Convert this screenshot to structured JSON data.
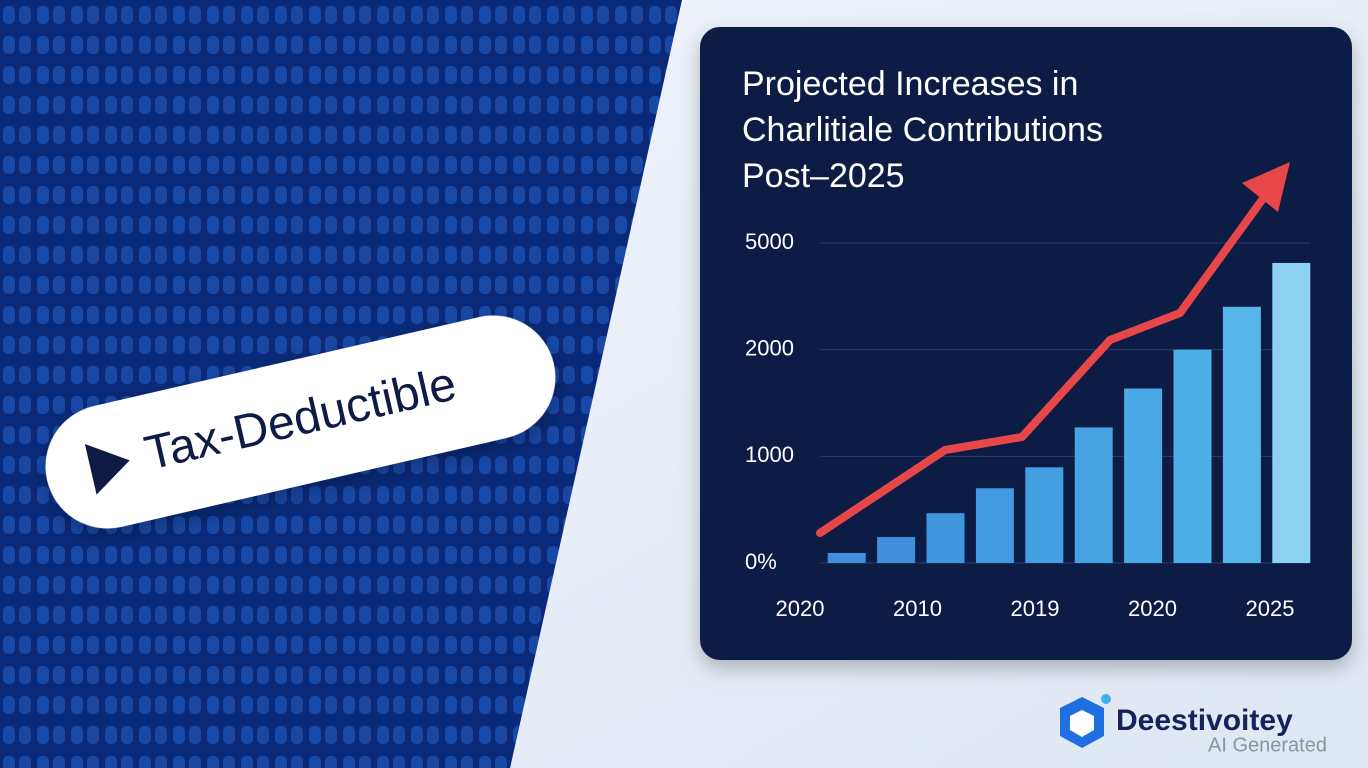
{
  "badge": {
    "label": "Tax-Deductible"
  },
  "logo": {
    "name": "Deestivoitey",
    "note": "AI Generated"
  },
  "chart_data": {
    "type": "bar",
    "title": [
      "Projected Increases in",
      "Charlitiale Contributions",
      "Post–2025"
    ],
    "values": [
      94,
      243,
      467,
      701,
      897,
      1271,
      1636,
      2000,
      3206,
      4439
    ],
    "colors": [
      "#3f8fdc",
      "#3f8fdc",
      "#3f95de",
      "#4299e0",
      "#449ee2",
      "#47a3e4",
      "#4aa8e6",
      "#4eaee8",
      "#56b6ea",
      "#8dd2f2"
    ],
    "x_axis_labels": [
      "2020",
      "2010",
      "2019",
      "2020",
      "2025"
    ],
    "yticks": [
      {
        "value": 0,
        "label": "0%"
      },
      1000,
      2000,
      5000
    ],
    "ylim": [
      0,
      5000
    ],
    "grid": true
  }
}
